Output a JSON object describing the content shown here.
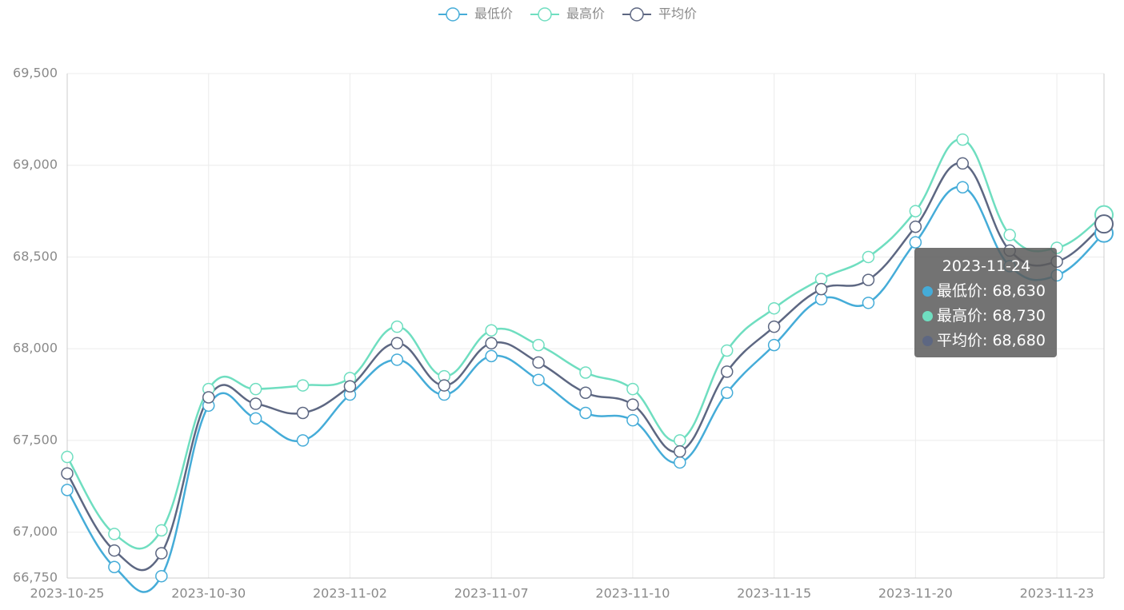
{
  "chart_data": {
    "type": "line",
    "categories": [
      "2023-10-25",
      null,
      null,
      "2023-10-30",
      null,
      null,
      "2023-11-02",
      null,
      null,
      "2023-11-07",
      null,
      null,
      "2023-11-10",
      null,
      null,
      "2023-11-15",
      null,
      null,
      "2023-11-20",
      null,
      null,
      "2023-11-23",
      null
    ],
    "series": [
      {
        "name": "最低价",
        "color": "#45acd8",
        "values": [
          67230,
          66810,
          66760,
          67690,
          67620,
          67500,
          67750,
          67940,
          67750,
          67960,
          67830,
          67650,
          67610,
          67380,
          67760,
          68020,
          68270,
          68250,
          68580,
          68880,
          68450,
          68400,
          68630
        ]
      },
      {
        "name": "最高价",
        "color": "#6fdec0",
        "values": [
          67410,
          66990,
          67010,
          67780,
          67780,
          67800,
          67840,
          68120,
          67850,
          68100,
          68020,
          67870,
          67780,
          67500,
          67990,
          68220,
          68380,
          68500,
          68750,
          69140,
          68620,
          68550,
          68730
        ]
      },
      {
        "name": "平均价",
        "color": "#5d6782",
        "values": [
          67320,
          66900,
          66885,
          67735,
          67700,
          67650,
          67795,
          68030,
          67800,
          68030,
          67925,
          67760,
          67695,
          67440,
          67875,
          68120,
          68325,
          68375,
          68665,
          69010,
          68535,
          68475,
          68680
        ]
      }
    ],
    "ylim": [
      66750,
      69500
    ],
    "yticks": [
      {
        "value": 66750,
        "label": "66,750"
      },
      {
        "value": 67000,
        "label": "67,000"
      },
      {
        "value": 67500,
        "label": "67,500"
      },
      {
        "value": 68000,
        "label": "68,000"
      },
      {
        "value": 68500,
        "label": "68,500"
      },
      {
        "value": 69000,
        "label": "69,000"
      },
      {
        "value": 69500,
        "label": "69,500"
      }
    ],
    "grid": true,
    "tooltip": {
      "title": "2023-11-24",
      "value_labels": [
        "68,630",
        "68,730",
        "68,680"
      ]
    }
  }
}
